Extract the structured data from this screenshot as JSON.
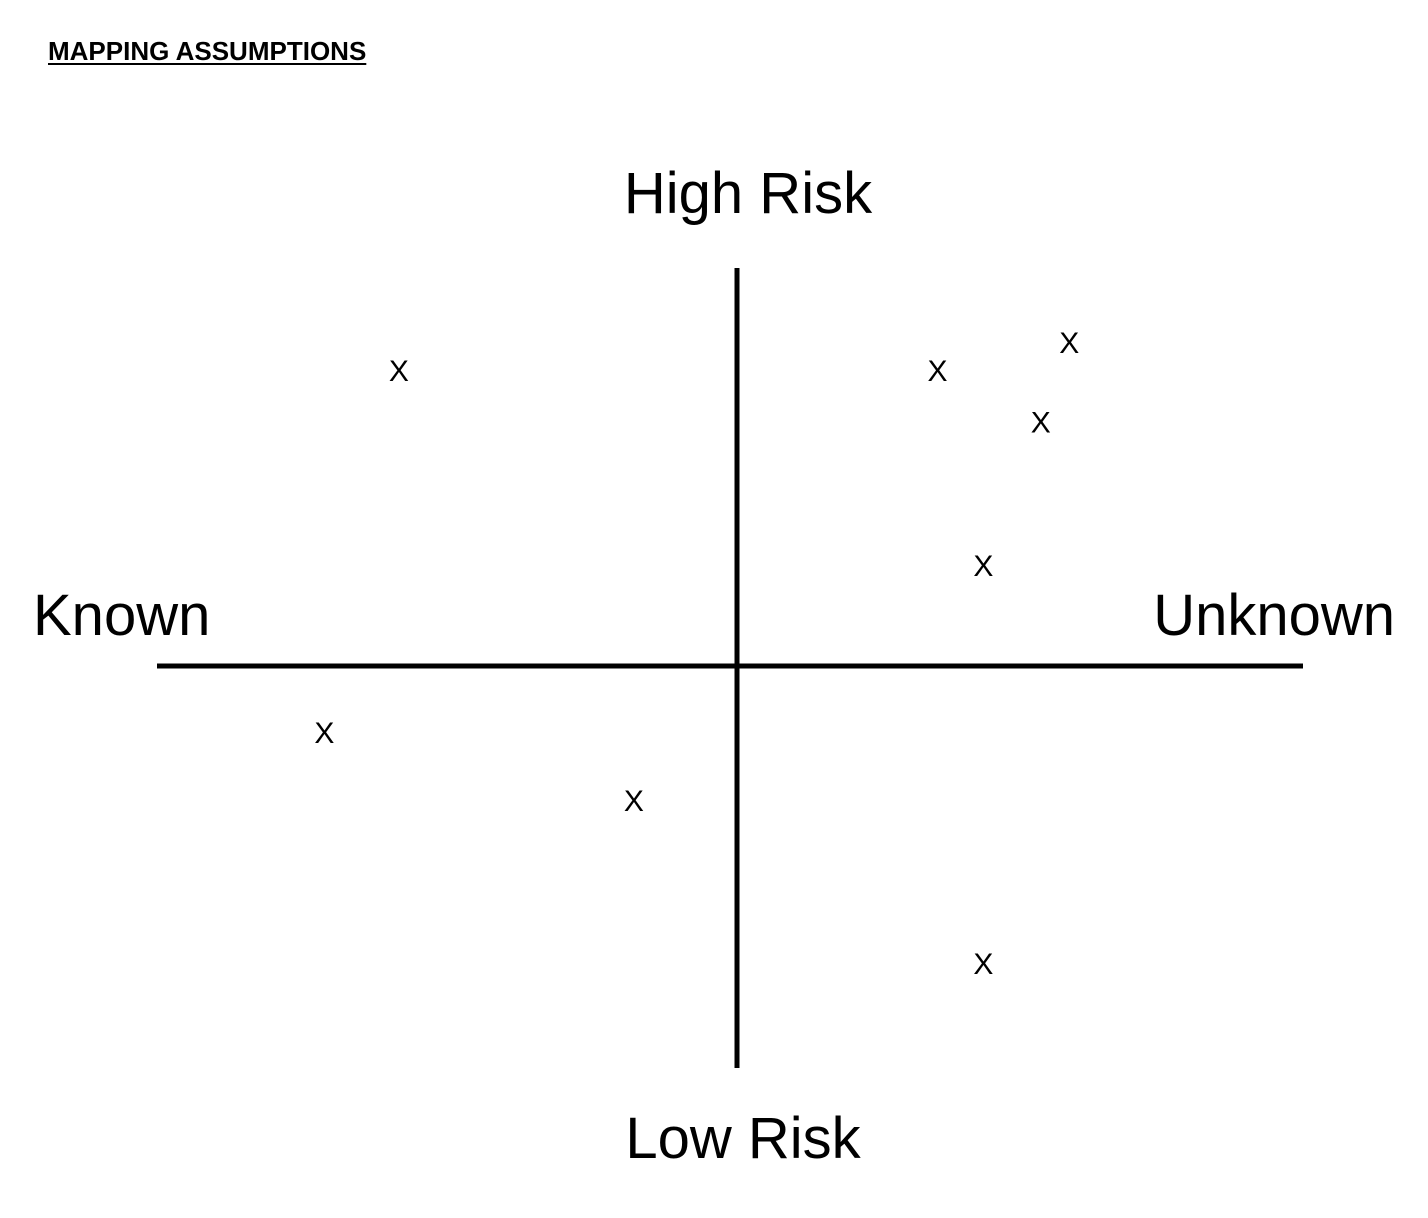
{
  "page": {
    "title": "MAPPING ASSUMPTIONS"
  },
  "chart_data": {
    "type": "scatter",
    "xlabel_left": "Known",
    "xlabel_right": "Unknown",
    "ylabel_top": "High Risk",
    "ylabel_bottom": "Low Risk",
    "xlim": [
      -1,
      1
    ],
    "ylim": [
      -1,
      1
    ],
    "grid": false,
    "marker": "X",
    "points": [
      {
        "x": -0.59,
        "y": 0.74
      },
      {
        "x": 0.35,
        "y": 0.74
      },
      {
        "x": 0.58,
        "y": 0.81
      },
      {
        "x": 0.53,
        "y": 0.61
      },
      {
        "x": 0.43,
        "y": 0.25
      },
      {
        "x": -0.72,
        "y": -0.17
      },
      {
        "x": -0.18,
        "y": -0.34
      },
      {
        "x": 0.43,
        "y": -0.75
      }
    ],
    "colors": {
      "axis": "#000000",
      "marker": "#000000"
    }
  }
}
